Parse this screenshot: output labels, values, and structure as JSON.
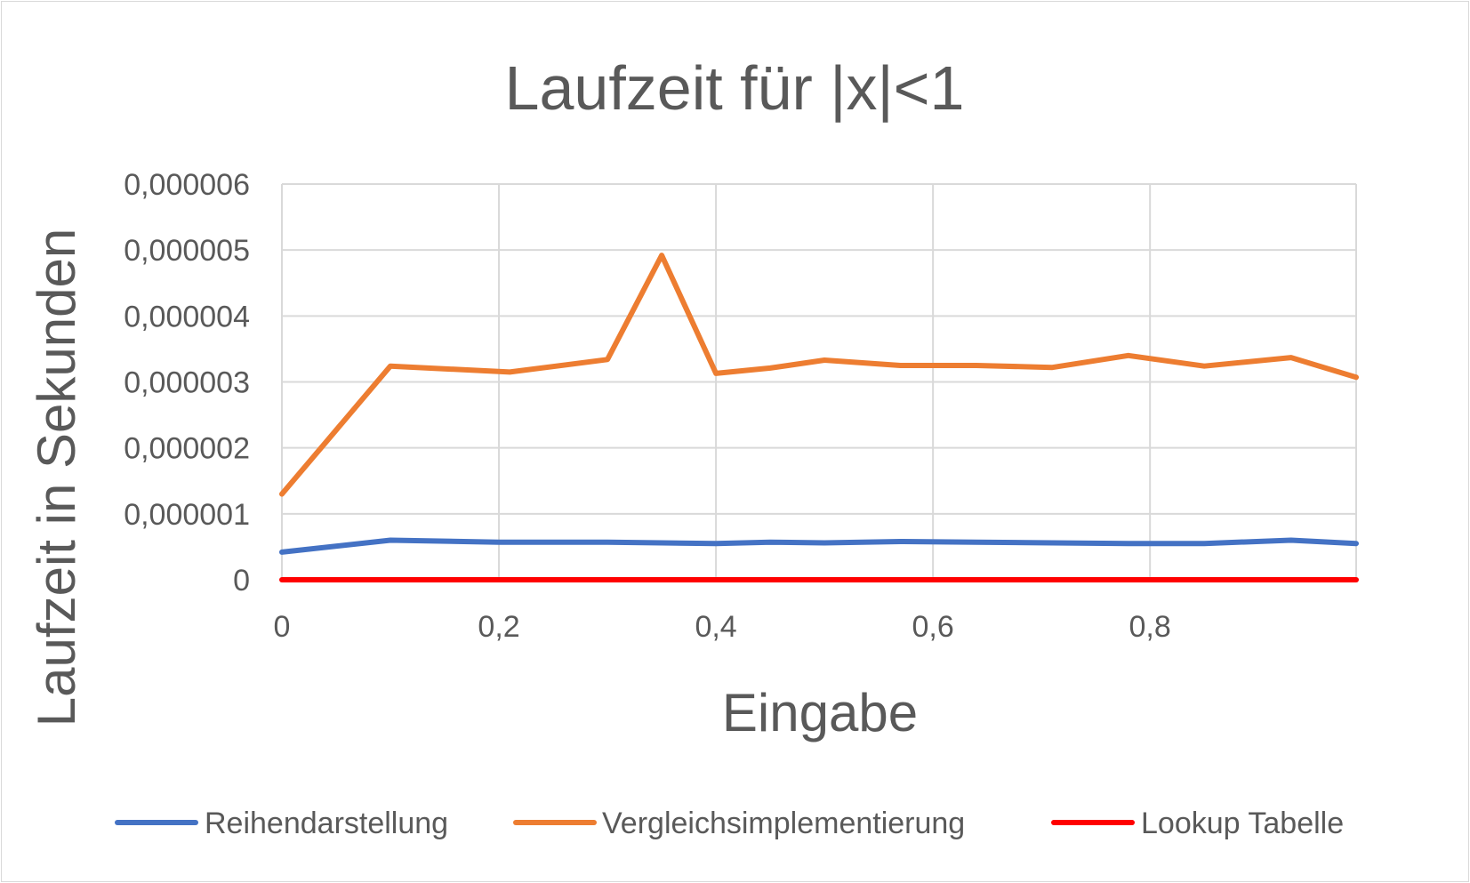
{
  "chart_data": {
    "type": "line",
    "title": "Laufzeit für |x|<1",
    "xlabel": "Eingabe",
    "ylabel": "Laufzeit in Sekunden",
    "xlim": [
      0,
      0.99
    ],
    "ylim": [
      0,
      6e-06
    ],
    "x_ticks": [
      0,
      0.2,
      0.4,
      0.6,
      0.8
    ],
    "x_tick_labels": [
      "0",
      "0,2",
      "0,4",
      "0,6",
      "0,8"
    ],
    "y_ticks": [
      0,
      1e-06,
      2e-06,
      3e-06,
      4e-06,
      5e-06,
      6e-06
    ],
    "y_tick_labels": [
      "0",
      "0,000001",
      "0,000002",
      "0,000003",
      "0,000004",
      "0,000005",
      "0,000006"
    ],
    "grid": true,
    "legend_position": "bottom",
    "series": [
      {
        "name": "Reihendarstellung",
        "color": "#4472c4",
        "x": [
          0,
          0.1,
          0.2,
          0.3,
          0.35,
          0.4,
          0.45,
          0.5,
          0.57,
          0.64,
          0.71,
          0.78,
          0.85,
          0.93,
          0.99
        ],
        "y": [
          4.2e-07,
          6e-07,
          5.7e-07,
          5.7e-07,
          5.6e-07,
          5.5e-07,
          5.7e-07,
          5.6e-07,
          5.8e-07,
          5.7e-07,
          5.6e-07,
          5.5e-07,
          5.5e-07,
          6e-07,
          5.5e-07
        ]
      },
      {
        "name": "Vergleichsimplementierung",
        "color": "#ed7d31",
        "x": [
          0,
          0.1,
          0.21,
          0.3,
          0.35,
          0.4,
          0.45,
          0.5,
          0.57,
          0.64,
          0.71,
          0.78,
          0.85,
          0.93,
          0.99
        ],
        "y": [
          1.3e-06,
          3.24e-06,
          3.15e-06,
          3.34e-06,
          4.92e-06,
          3.13e-06,
          3.21e-06,
          3.33e-06,
          3.25e-06,
          3.25e-06,
          3.22e-06,
          3.4e-06,
          3.24e-06,
          3.37e-06,
          3.07e-06
        ]
      },
      {
        "name": "Lookup Tabelle",
        "color": "#ff0000",
        "x": [
          0,
          0.99
        ],
        "y": [
          0,
          0
        ]
      }
    ]
  }
}
